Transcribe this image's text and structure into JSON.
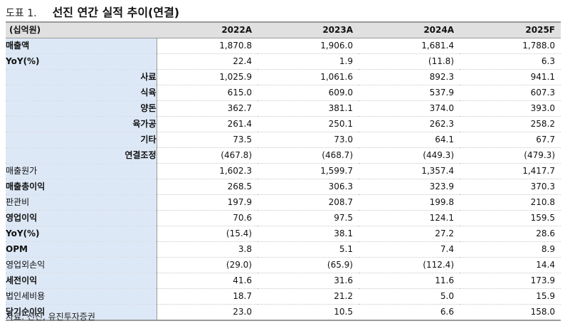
{
  "title": {
    "label": "도표 1.",
    "text": "선진 연간 실적 추이(연결)"
  },
  "table": {
    "header_label": "(십억원)",
    "columns": [
      "2022A",
      "2023A",
      "2024A",
      "2025F"
    ],
    "rows": [
      {
        "label": "매출액",
        "level": "main",
        "values": [
          "1,870.8",
          "1,906.0",
          "1,681.4",
          "1,788.0"
        ]
      },
      {
        "label": "YoY(%)",
        "level": "subbold",
        "values": [
          "22.4",
          "1.9",
          "(11.8)",
          "6.3"
        ]
      },
      {
        "label": "사료",
        "level": "right",
        "values": [
          "1,025.9",
          "1,061.6",
          "892.3",
          "941.1"
        ]
      },
      {
        "label": "식육",
        "level": "right",
        "values": [
          "615.0",
          "609.0",
          "537.9",
          "607.3"
        ]
      },
      {
        "label": "양돈",
        "level": "right",
        "values": [
          "362.7",
          "381.1",
          "374.0",
          "393.0"
        ]
      },
      {
        "label": "육가공",
        "level": "right",
        "values": [
          "261.4",
          "250.1",
          "262.3",
          "258.2"
        ]
      },
      {
        "label": "기타",
        "level": "right",
        "values": [
          "73.5",
          "73.0",
          "64.1",
          "67.7"
        ]
      },
      {
        "label": "연결조정",
        "level": "right",
        "values": [
          "(467.8)",
          "(468.7)",
          "(449.3)",
          "(479.3)"
        ]
      },
      {
        "label": "매출원가",
        "level": "sub",
        "values": [
          "1,602.3",
          "1,599.7",
          "1,357.4",
          "1,417.7"
        ]
      },
      {
        "label": "매출총이익",
        "level": "main",
        "values": [
          "268.5",
          "306.3",
          "323.9",
          "370.3"
        ]
      },
      {
        "label": "판관비",
        "level": "sub",
        "values": [
          "197.9",
          "208.7",
          "199.8",
          "210.8"
        ]
      },
      {
        "label": "영업이익",
        "level": "main",
        "values": [
          "70.6",
          "97.5",
          "124.1",
          "159.5"
        ]
      },
      {
        "label": "YoY(%)",
        "level": "subbold",
        "values": [
          "(15.4)",
          "38.1",
          "27.2",
          "28.6"
        ]
      },
      {
        "label": "OPM",
        "level": "main",
        "values": [
          "3.8",
          "5.1",
          "7.4",
          "8.9"
        ]
      },
      {
        "label": "영업외손익",
        "level": "sub",
        "values": [
          "(29.0)",
          "(65.9)",
          "(112.4)",
          "14.4"
        ]
      },
      {
        "label": "세전이익",
        "level": "main",
        "values": [
          "41.6",
          "31.6",
          "11.6",
          "173.9"
        ]
      },
      {
        "label": "법인세비용",
        "level": "sub",
        "values": [
          "18.7",
          "21.2",
          "5.0",
          "15.9"
        ]
      },
      {
        "label": "당기순이익",
        "level": "main",
        "values": [
          "23.0",
          "10.5",
          "6.6",
          "158.0"
        ]
      }
    ]
  },
  "source": "자료: 선진, 유진투자증권"
}
